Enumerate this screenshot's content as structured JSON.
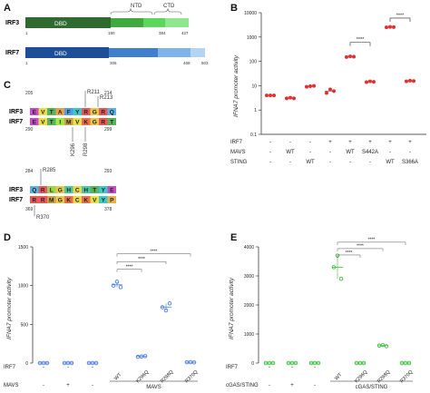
{
  "panels": {
    "A": {
      "letter": "A",
      "irf3": {
        "name": "IRF3",
        "dbd_label": "DBD",
        "ticks": [
          "1",
          "190",
          "384",
          "427"
        ],
        "brace_labels": [
          "NTD",
          "CTD"
        ],
        "colors": [
          "#2f6a2f",
          "#3fa83f",
          "#5cd65c",
          "#8fe88f"
        ]
      },
      "irf7": {
        "name": "IRF7",
        "dbd_label": "DBD",
        "ticks": [
          "1",
          "305",
          "468",
          "503"
        ],
        "colors": [
          "#1f4e99",
          "#3f7fd0",
          "#7fb3ec",
          "#b3d4f5"
        ]
      }
    },
    "B": {
      "letter": "B",
      "ylabel": "IFNA7 promoter activity",
      "yticks": [
        "10000",
        "1000",
        "100",
        "10",
        "1",
        "0.1"
      ],
      "row_labels": [
        "IRF7",
        "MAVS",
        "STING"
      ],
      "columns": [
        {
          "irf7": "-",
          "mavs": "-",
          "sting": "-"
        },
        {
          "irf7": "-",
          "mavs": "WT",
          "sting": "-"
        },
        {
          "irf7": "-",
          "mavs": "-",
          "sting": "WT"
        },
        {
          "irf7": "+",
          "mavs": "-",
          "sting": "-"
        },
        {
          "irf7": "+",
          "mavs": "WT",
          "sting": "-"
        },
        {
          "irf7": "+",
          "mavs": "S442A",
          "sting": "-"
        },
        {
          "irf7": "+",
          "mavs": "-",
          "sting": "WT"
        },
        {
          "irf7": "+",
          "mavs": "-",
          "sting": "S366A"
        }
      ],
      "sig": [
        "****",
        "****"
      ]
    },
    "C": {
      "letter": "C",
      "block1": {
        "top_nums": [
          "205",
          "214"
        ],
        "top_mut": [
          "R211",
          "R213"
        ],
        "irf3_label": "IRF3",
        "irf7_label": "IRF7",
        "irf3_seq": [
          "E",
          "V",
          "T",
          "A",
          "F",
          "Y",
          "R",
          "G",
          "R",
          "Q"
        ],
        "irf7_seq": [
          "E",
          "V",
          "T",
          "I",
          "M",
          "V",
          "K",
          "G",
          "R",
          "T"
        ],
        "bottom_mut": [
          "K296",
          "R298"
        ],
        "bottom_nums": [
          "290",
          "299"
        ]
      },
      "block2": {
        "top_nums": [
          "284",
          "293"
        ],
        "top_mut": [
          "R285"
        ],
        "irf3_label": "IRF3",
        "irf7_label": "IRF7",
        "irf3_seq": [
          "Q",
          "R",
          "L",
          "G",
          "H",
          "C",
          "H",
          "T",
          "Y",
          "E"
        ],
        "irf7_seq": [
          "R",
          "R",
          "M",
          "G",
          "K",
          "C",
          "K",
          "V",
          "Y",
          "P"
        ],
        "bottom_mut": [
          "R370"
        ],
        "bottom_nums": [
          "369",
          "378"
        ]
      }
    },
    "D": {
      "letter": "D",
      "ylabel": "IFNA7 promoter activity",
      "yticks": [
        "1500",
        "1000",
        "500",
        "0"
      ],
      "row_labels": [
        "IRF7",
        "MAVS"
      ],
      "group_label": "MAVS",
      "irf7_row": [
        "-",
        "-",
        "-",
        "WT",
        "K296Q",
        "R298Q",
        "R370Q"
      ],
      "mavs_row": [
        "-",
        "+",
        "-"
      ],
      "sig": [
        "****",
        "****",
        "****"
      ]
    },
    "E": {
      "letter": "E",
      "ylabel": "IFNA7 promoter activity",
      "yticks": [
        "4000",
        "3000",
        "2000",
        "1000",
        "0"
      ],
      "row_labels": [
        "IRF7",
        "cGAS/STING"
      ],
      "group_label": "cGAS/STING",
      "irf7_row": [
        "-",
        "-",
        "-",
        "WT",
        "K296Q",
        "R298Q",
        "R370Q"
      ],
      "cgas_row": [
        "-",
        "+",
        "-"
      ],
      "sig": [
        "****",
        "****",
        "****"
      ]
    }
  },
  "chart_data": [
    {
      "panel": "B",
      "type": "scatter",
      "ylabel": "IFNA7 promoter activity",
      "yscale": "log",
      "ylim": [
        0.1,
        10000
      ],
      "color": "#e03030",
      "x": [
        1,
        2,
        3,
        4,
        5,
        6,
        7,
        8
      ],
      "series": [
        {
          "values": [
            [
              4,
              4,
              4
            ],
            [
              3,
              3.2,
              3
            ],
            [
              9,
              9.5,
              9.8
            ],
            [
              5,
              7,
              6
            ],
            [
              150,
              160,
              155
            ],
            [
              14,
              15,
              14.5
            ],
            [
              2500,
              2600,
              2550
            ],
            [
              15,
              16,
              15.5
            ]
          ]
        }
      ]
    },
    {
      "panel": "D",
      "type": "scatter",
      "ylabel": "IFNA7 promoter activity",
      "ylim": [
        0,
        1500
      ],
      "color": "#4a7fe0",
      "categories": [
        "1",
        "2",
        "3",
        "WT",
        "K296Q",
        "R298Q",
        "R370Q"
      ],
      "series": [
        {
          "values": [
            [
              0,
              0,
              0
            ],
            [
              0,
              0,
              0
            ],
            [
              0,
              0,
              0
            ],
            [
              1000,
              1050,
              980
            ],
            [
              80,
              85,
              90
            ],
            [
              720,
              680,
              770
            ],
            [
              10,
              12,
              8
            ]
          ]
        }
      ]
    },
    {
      "panel": "E",
      "type": "scatter",
      "ylabel": "IFNA7 promoter activity",
      "ylim": [
        0,
        4000
      ],
      "color": "#3fbf3f",
      "categories": [
        "1",
        "2",
        "3",
        "WT",
        "K296Q",
        "R298Q",
        "R370Q"
      ],
      "series": [
        {
          "values": [
            [
              0,
              0,
              0
            ],
            [
              0,
              0,
              0
            ],
            [
              0,
              0,
              0
            ],
            [
              3300,
              3700,
              2900
            ],
            [
              0,
              0,
              0
            ],
            [
              600,
              620,
              580
            ],
            [
              0,
              0,
              0
            ]
          ]
        }
      ]
    }
  ]
}
